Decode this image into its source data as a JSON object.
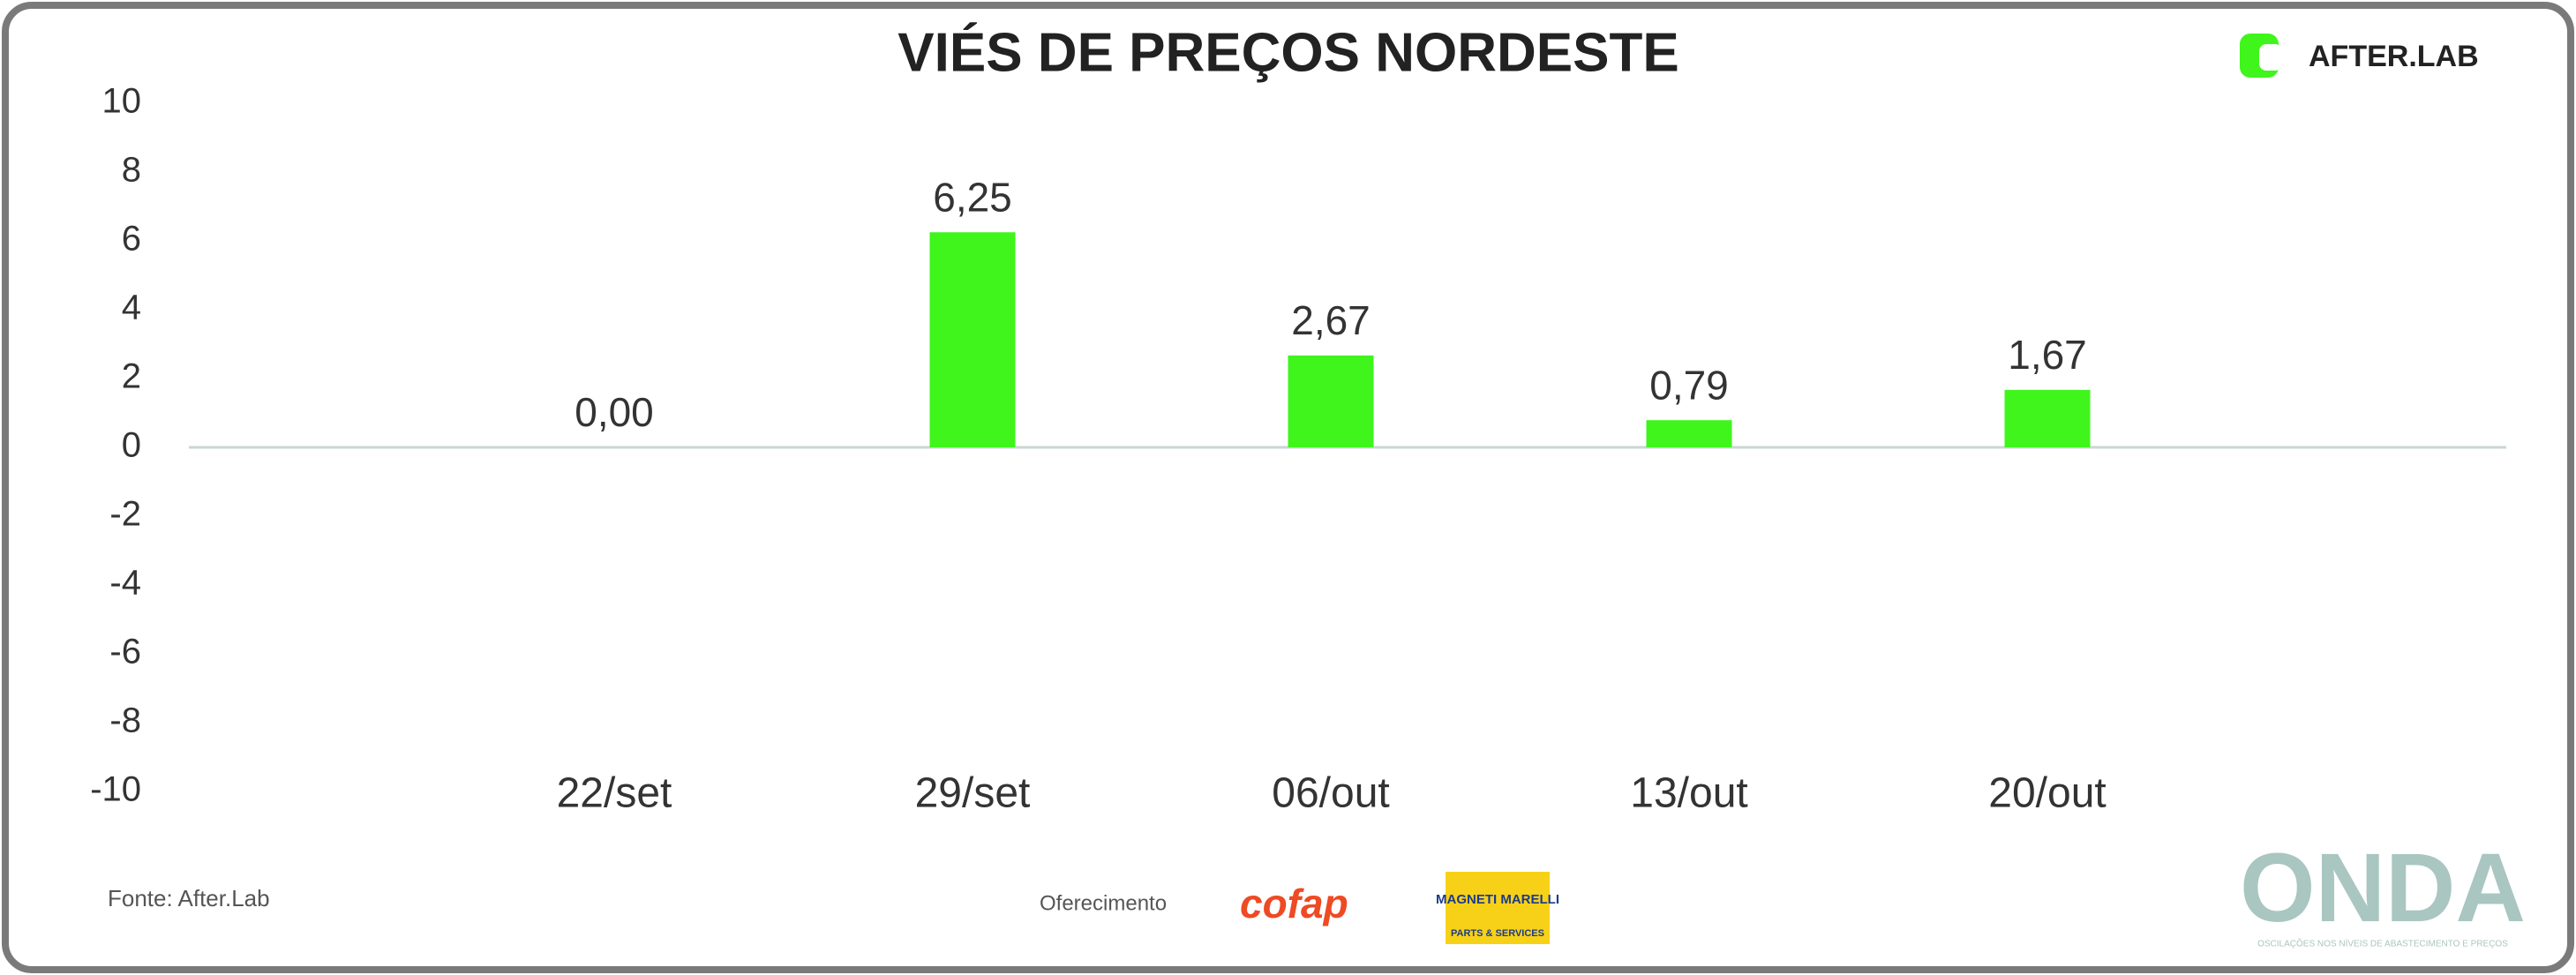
{
  "chart_data": {
    "type": "bar",
    "title": "VIÉS DE PREÇOS NORDESTE",
    "categories": [
      "22/set",
      "29/set",
      "06/out",
      "13/out",
      "20/out"
    ],
    "values": [
      0.0,
      6.25,
      2.67,
      0.79,
      1.67
    ],
    "value_labels": [
      "0,00",
      "6,25",
      "2,67",
      "0,79",
      "1,67"
    ],
    "color": "#3ff51c",
    "ylim": [
      -10,
      10
    ],
    "yticks": [
      -10,
      -8,
      -6,
      -4,
      -2,
      0,
      2,
      4,
      6,
      8,
      10
    ],
    "grid": false
  },
  "branding": {
    "logo": "AFTER.LAB",
    "source": "Fonte: After.Lab",
    "sponsor_label": "Oferecimento",
    "sponsor_1": "cofap",
    "sponsor_2": "MAGNETI MARELLI",
    "sponsor_2_sub": "PARTS & SERVICES",
    "brand": "ONDA",
    "brand_sub": "OSCILAÇÕES NOS NÍVEIS DE ABASTECIMENTO E PREÇOS"
  }
}
